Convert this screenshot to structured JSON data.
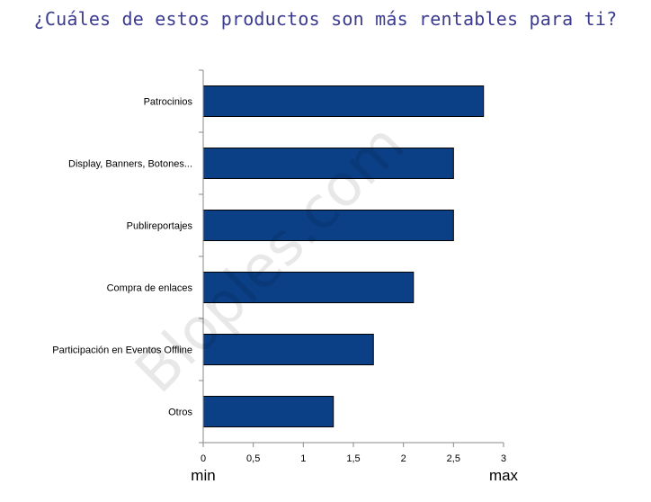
{
  "chart_data": {
    "type": "bar",
    "orientation": "horizontal",
    "title": "¿Cuáles de estos productos son más rentables para ti?",
    "categories": [
      "Patrocinios",
      "Display, Banners, Botones...",
      "Publireportajes",
      "Compra de enlaces",
      "Participación en Eventos Offline",
      "Otros"
    ],
    "values": [
      2.8,
      2.5,
      2.5,
      2.1,
      1.7,
      1.3
    ],
    "xlim": [
      0,
      3
    ],
    "x_ticks": [
      0,
      0.5,
      1,
      1.5,
      2,
      2.5,
      3
    ],
    "x_tick_labels": [
      "0",
      "0,5",
      "1",
      "1,5",
      "2",
      "2,5",
      "3"
    ],
    "x_min_label": "min",
    "x_max_label": "max",
    "grid": false,
    "bar_color": "#0b3f86",
    "watermark": "Bloples.com"
  }
}
